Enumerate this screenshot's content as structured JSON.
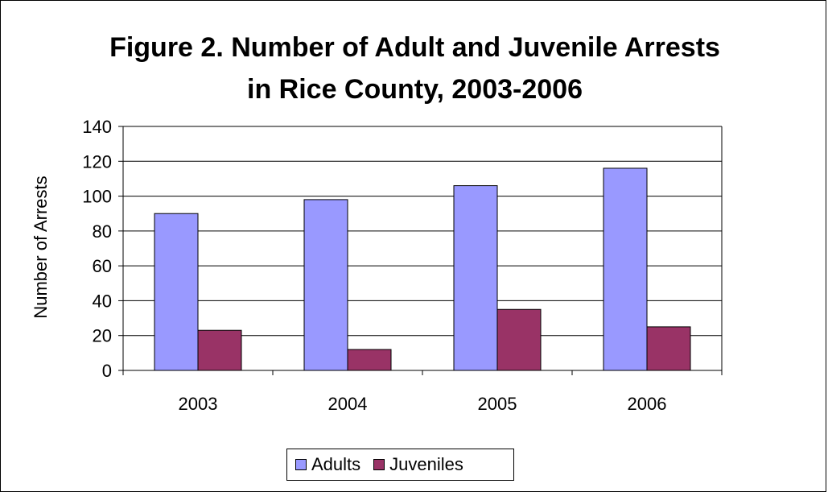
{
  "chart_data": {
    "type": "bar",
    "title": "Figure 2. Number of Adult and Juvenile Arrests",
    "subtitle": "in Rice County, 2003-2006",
    "xlabel": "",
    "ylabel": "Number of Arrests",
    "categories": [
      "2003",
      "2004",
      "2005",
      "2006"
    ],
    "ylim": [
      0,
      140
    ],
    "yticks": [
      0,
      20,
      40,
      60,
      80,
      100,
      120,
      140
    ],
    "grid": true,
    "legend_position": "bottom",
    "series": [
      {
        "name": "Adults",
        "values": [
          90,
          98,
          106,
          116
        ],
        "color": "#9999ff"
      },
      {
        "name": "Juveniles",
        "values": [
          23,
          12,
          35,
          25
        ],
        "color": "#993366"
      }
    ]
  }
}
